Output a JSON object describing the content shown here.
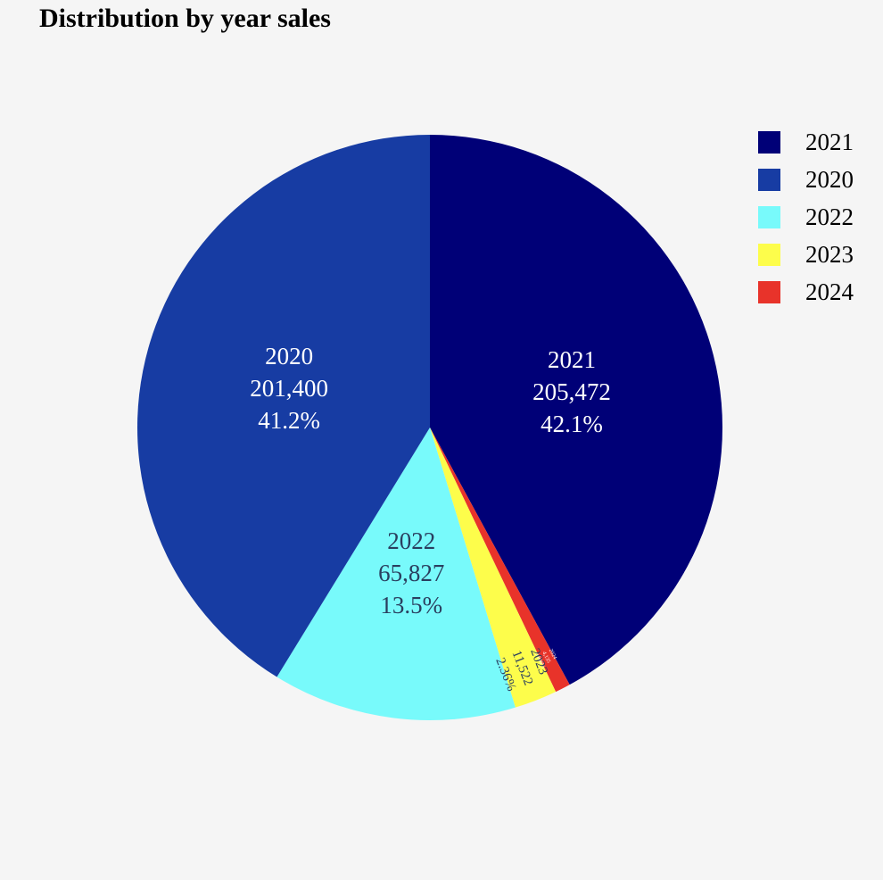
{
  "chart_data": {
    "type": "pie",
    "title": "Distribution by year sales",
    "slices": [
      {
        "label": "2021",
        "value": 205472,
        "value_text": "205,472",
        "percent_text": "42.1%",
        "color": "#000077"
      },
      {
        "label": "2024",
        "value": 4135,
        "value_text": "4,135",
        "percent_text": "0.846%",
        "color": "#e8332a"
      },
      {
        "label": "2023",
        "value": 11522,
        "value_text": "11,522",
        "percent_text": "2.36%",
        "color": "#fdfd4b"
      },
      {
        "label": "2022",
        "value": 65827,
        "value_text": "65,827",
        "percent_text": "13.5%",
        "color": "#78fafb"
      },
      {
        "label": "2020",
        "value": 201400,
        "value_text": "201,400",
        "percent_text": "41.2%",
        "color": "#173ca3"
      }
    ],
    "legend": {
      "placement": "top-right",
      "order": [
        "2021",
        "2020",
        "2022",
        "2023",
        "2024"
      ]
    }
  }
}
